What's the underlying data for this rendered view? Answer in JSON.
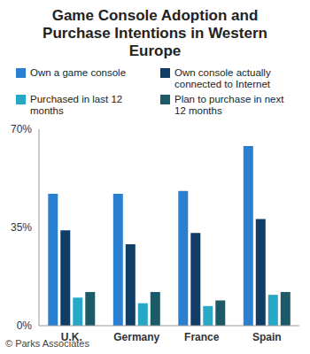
{
  "chart_data": {
    "type": "bar",
    "title": "Game Console Adoption and Purchase Intentions in Western Europe",
    "source": "© Parks Associates",
    "categories": [
      "U.K.",
      "Germany",
      "France",
      "Spain"
    ],
    "series": [
      {
        "name": "Own a game console",
        "color": "#2b7fd1",
        "values": [
          47,
          47,
          48,
          64
        ]
      },
      {
        "name": "Own console actually connected to Internet",
        "color": "#0f3d66",
        "values": [
          34,
          29,
          33,
          38
        ]
      },
      {
        "name": "Purchased in last 12 months",
        "color": "#25a9c6",
        "values": [
          10,
          8,
          7,
          11
        ]
      },
      {
        "name": "Plan to purchase in next 12 months",
        "color": "#1b5a66",
        "values": [
          12,
          12,
          9,
          12
        ]
      }
    ],
    "ylim": [
      0,
      70
    ],
    "yticks": [
      {
        "value": 0,
        "label": "0%"
      },
      {
        "value": 35,
        "label": "35%"
      },
      {
        "value": 70,
        "label": "70%"
      }
    ],
    "grid": false,
    "legend": "top"
  }
}
